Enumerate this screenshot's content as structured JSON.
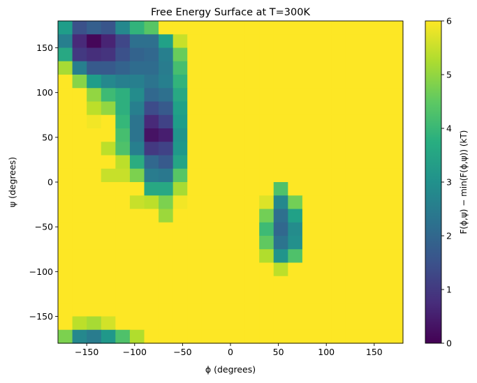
{
  "chart_data": {
    "type": "heatmap",
    "title": "Free Energy Surface at T=300K",
    "xlabel": "ϕ (degrees)",
    "ylabel": "ψ (degrees)",
    "colorbar_label": "F(ϕ,ψ) − min(F(ϕ,ψ)) (kT)",
    "colormap": "viridis",
    "xlim": [
      -180,
      180
    ],
    "ylim": [
      -180,
      180
    ],
    "clim": [
      0,
      6
    ],
    "bin_size": 15,
    "xticks": [
      -150,
      -100,
      -50,
      0,
      50,
      100,
      150
    ],
    "xtick_labels": [
      "−150",
      "−100",
      "−50",
      "0",
      "50",
      "100",
      "150"
    ],
    "yticks": [
      150,
      100,
      50,
      0,
      -50,
      -100,
      -150
    ],
    "ytick_labels": [
      "150",
      "100",
      "50",
      "0",
      "−50",
      "−100",
      "−150"
    ],
    "cticks": [
      0,
      1,
      2,
      3,
      4,
      5,
      6
    ],
    "ctick_labels": [
      "0",
      "1",
      "2",
      "3",
      "4",
      "5",
      "6"
    ],
    "default_value": 6,
    "x_centers": [
      -172.5,
      -157.5,
      -142.5,
      -127.5,
      -112.5,
      -97.5,
      -82.5,
      -67.5,
      -52.5,
      -37.5,
      -22.5,
      -7.5,
      7.5,
      22.5,
      37.5,
      52.5,
      67.5,
      82.5,
      97.5,
      112.5,
      127.5,
      142.5,
      157.5,
      172.5
    ],
    "rows": [
      {
        "psi": 172.5,
        "values": [
          3.3,
          1.5,
          1.8,
          1.6,
          2.8,
          3.9,
          4.4,
          6,
          6,
          6,
          6,
          6,
          6,
          6,
          6,
          6,
          6,
          6,
          6,
          6,
          6,
          6,
          6,
          6
        ]
      },
      {
        "psi": 157.5,
        "values": [
          2.6,
          0.7,
          0.1,
          0.6,
          1.3,
          2.2,
          2.2,
          3.4,
          5.5,
          6,
          6,
          6,
          6,
          6,
          6,
          6,
          6,
          6,
          6,
          6,
          6,
          6,
          6,
          6
        ]
      },
      {
        "psi": 142.5,
        "values": [
          3.6,
          1.0,
          0.8,
          0.9,
          1.5,
          1.9,
          2.0,
          2.6,
          4.6,
          6,
          6,
          6,
          6,
          6,
          6,
          6,
          6,
          6,
          6,
          6,
          6,
          6,
          6,
          6
        ]
      },
      {
        "psi": 127.5,
        "values": [
          5.2,
          2.6,
          1.7,
          1.7,
          1.9,
          2.1,
          2.1,
          2.5,
          4.2,
          6,
          6,
          6,
          6,
          6,
          6,
          6,
          6,
          6,
          6,
          6,
          6,
          6,
          6,
          6
        ]
      },
      {
        "psi": 112.5,
        "values": [
          6,
          4.9,
          3.3,
          2.8,
          2.6,
          2.6,
          2.3,
          2.6,
          3.9,
          6,
          6,
          6,
          6,
          6,
          6,
          6,
          6,
          6,
          6,
          6,
          6,
          6,
          6,
          6
        ]
      },
      {
        "psi": 97.5,
        "values": [
          6,
          6,
          5.0,
          4.1,
          3.8,
          2.9,
          2.0,
          2.2,
          3.6,
          6,
          6,
          6,
          6,
          6,
          6,
          6,
          6,
          6,
          6,
          6,
          6,
          6,
          6,
          6
        ]
      },
      {
        "psi": 82.5,
        "values": [
          6,
          6,
          5.4,
          5.0,
          3.8,
          2.6,
          1.4,
          1.7,
          3.4,
          6,
          6,
          6,
          6,
          6,
          6,
          6,
          6,
          6,
          6,
          6,
          6,
          6,
          6,
          6
        ]
      },
      {
        "psi": 67.5,
        "values": [
          6,
          6,
          5.9,
          6,
          4.0,
          2.3,
          0.7,
          1.2,
          3.3,
          6,
          6,
          6,
          6,
          6,
          6,
          6,
          6,
          6,
          6,
          6,
          6,
          6,
          6,
          6
        ]
      },
      {
        "psi": 52.5,
        "values": [
          6,
          6,
          6,
          6,
          4.2,
          2.3,
          0.3,
          0.5,
          3.1,
          6,
          6,
          6,
          6,
          6,
          6,
          6,
          6,
          6,
          6,
          6,
          6,
          6,
          6,
          6
        ]
      },
      {
        "psi": 37.5,
        "values": [
          6,
          6,
          6,
          5.4,
          4.3,
          2.6,
          1.0,
          1.2,
          3.2,
          6,
          6,
          6,
          6,
          6,
          6,
          6,
          6,
          6,
          6,
          6,
          6,
          6,
          6,
          6
        ]
      },
      {
        "psi": 22.5,
        "values": [
          6,
          6,
          6,
          6,
          5.4,
          3.7,
          2.0,
          1.7,
          3.5,
          6,
          6,
          6,
          6,
          6,
          6,
          6,
          6,
          6,
          6,
          6,
          6,
          6,
          6,
          6
        ]
      },
      {
        "psi": 7.5,
        "values": [
          6,
          6,
          6,
          5.5,
          5.5,
          4.8,
          2.5,
          2.4,
          4.4,
          6,
          6,
          6,
          6,
          6,
          6,
          6,
          6,
          6,
          6,
          6,
          6,
          6,
          6,
          6
        ]
      },
      {
        "psi": -7.5,
        "values": [
          6,
          6,
          6,
          6,
          6,
          6,
          3.6,
          3.6,
          5.2,
          6,
          6,
          6,
          6,
          6,
          6,
          4.3,
          6,
          6,
          6,
          6,
          6,
          6,
          6,
          6
        ]
      },
      {
        "psi": -22.5,
        "values": [
          6,
          6,
          6,
          6,
          6,
          5.5,
          5.4,
          4.8,
          5.9,
          6,
          6,
          6,
          6,
          6,
          5.7,
          2.8,
          4.7,
          6,
          6,
          6,
          6,
          6,
          6,
          6
        ]
      },
      {
        "psi": -37.5,
        "values": [
          6,
          6,
          6,
          6,
          6,
          6,
          6,
          5.1,
          6,
          6,
          6,
          6,
          6,
          6,
          4.7,
          2.2,
          3.4,
          6,
          6,
          6,
          6,
          6,
          6,
          6
        ]
      },
      {
        "psi": -52.5,
        "values": [
          6,
          6,
          6,
          6,
          6,
          6,
          6,
          6,
          6,
          6,
          6,
          6,
          6,
          6,
          4.1,
          2.0,
          2.9,
          6,
          6,
          6,
          6,
          6,
          6,
          6
        ]
      },
      {
        "psi": -67.5,
        "values": [
          6,
          6,
          6,
          6,
          6,
          6,
          6,
          6,
          6,
          6,
          6,
          6,
          6,
          6,
          4.5,
          2.3,
          3.0,
          6,
          6,
          6,
          6,
          6,
          6,
          6
        ]
      },
      {
        "psi": -82.5,
        "values": [
          6,
          6,
          6,
          6,
          6,
          6,
          6,
          6,
          6,
          6,
          6,
          6,
          6,
          6,
          5.3,
          3.1,
          4.3,
          6,
          6,
          6,
          6,
          6,
          6,
          6
        ]
      },
      {
        "psi": -97.5,
        "values": [
          6,
          6,
          6,
          6,
          6,
          6,
          6,
          6,
          6,
          6,
          6,
          6,
          6,
          6,
          6,
          5.4,
          6,
          6,
          6,
          6,
          6,
          6,
          6,
          6
        ]
      },
      {
        "psi": -112.5,
        "values": [
          6,
          6,
          6,
          6,
          6,
          6,
          6,
          6,
          6,
          6,
          6,
          6,
          6,
          6,
          6,
          6,
          6,
          6,
          6,
          6,
          6,
          6,
          6,
          6
        ]
      },
      {
        "psi": -127.5,
        "values": [
          6,
          6,
          6,
          6,
          6,
          6,
          6,
          6,
          6,
          6,
          6,
          6,
          6,
          6,
          6,
          6,
          6,
          6,
          6,
          6,
          6,
          6,
          6,
          6
        ]
      },
      {
        "psi": -142.5,
        "values": [
          6,
          6,
          6,
          6,
          6,
          6,
          6,
          6,
          6,
          6,
          6,
          6,
          6,
          6,
          6,
          6,
          6,
          6,
          6,
          6,
          6,
          6,
          6,
          6
        ]
      },
      {
        "psi": -157.5,
        "values": [
          6,
          5.4,
          5.2,
          5.6,
          6,
          6,
          6,
          6,
          6,
          6,
          6,
          6,
          6,
          6,
          6,
          6,
          6,
          6,
          6,
          6,
          6,
          6,
          6,
          6
        ]
      },
      {
        "psi": -172.5,
        "values": [
          4.8,
          2.8,
          2.5,
          3.2,
          4.3,
          5.3,
          6,
          6,
          6,
          6,
          6,
          6,
          6,
          6,
          6,
          6,
          6,
          6,
          6,
          6,
          6,
          6,
          6,
          6
        ]
      }
    ]
  }
}
